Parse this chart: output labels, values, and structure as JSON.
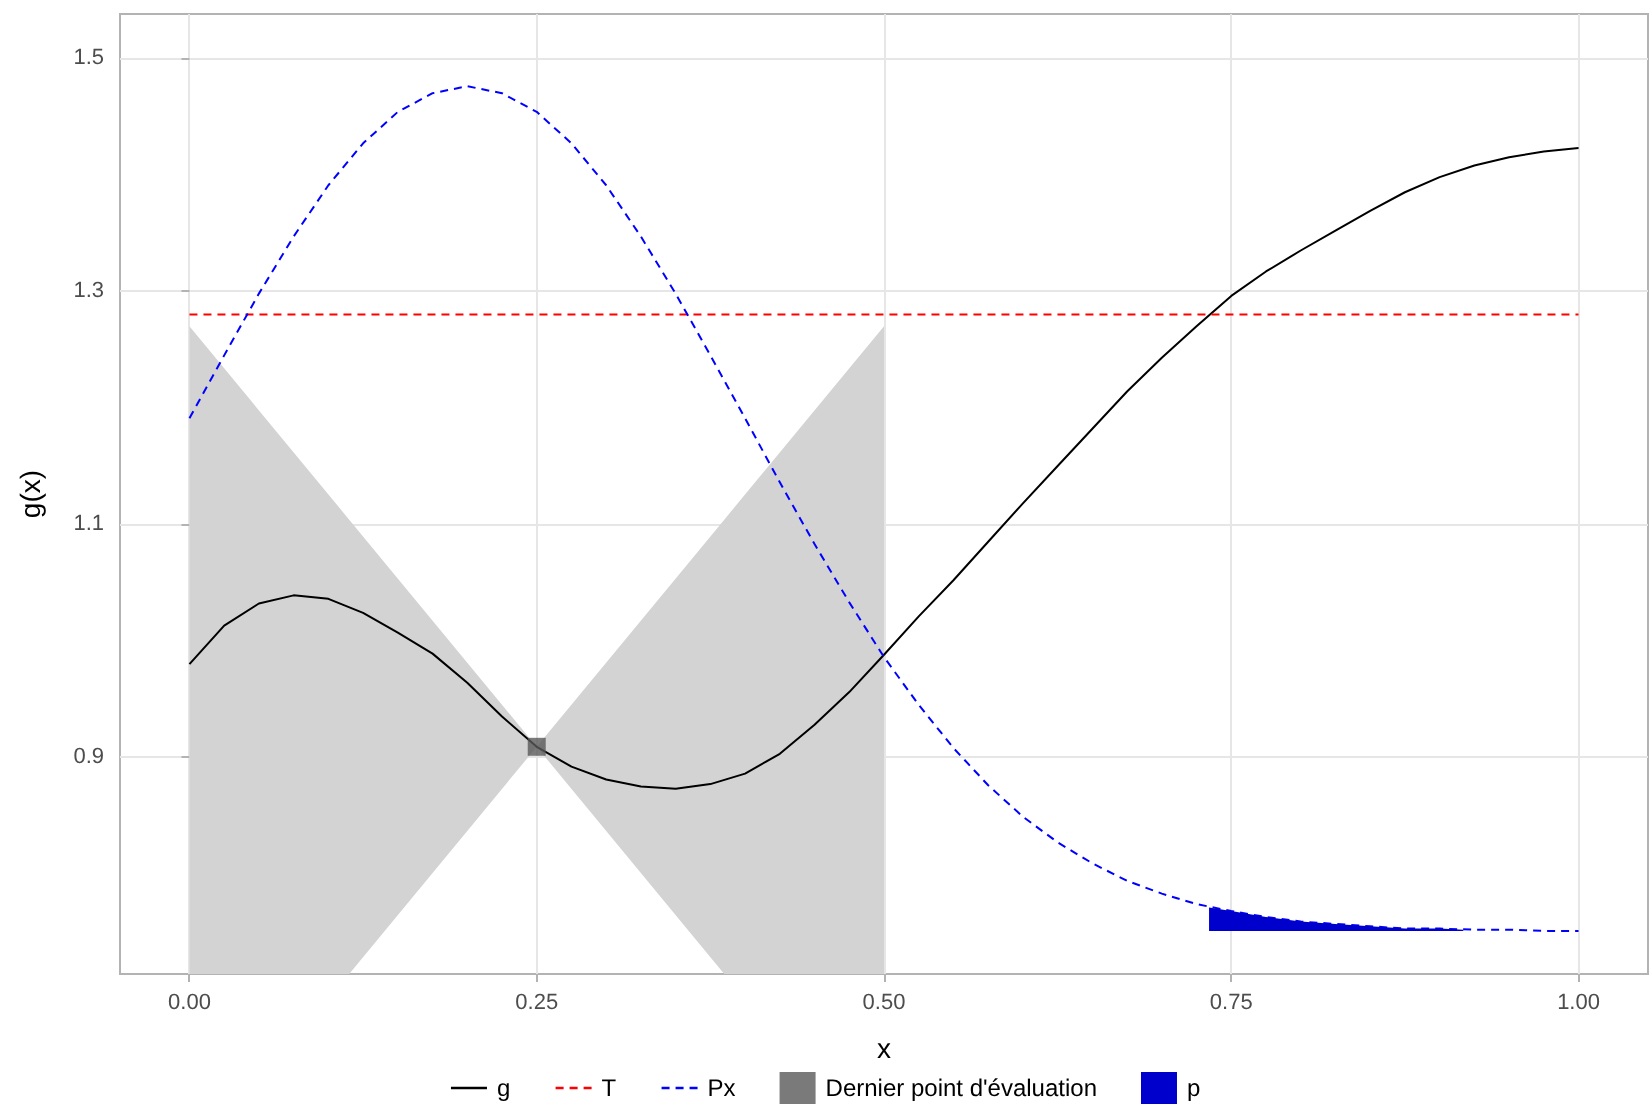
{
  "chart_data": {
    "type": "line",
    "xlabel": "x",
    "ylabel": "g(x)",
    "xlim": [
      -0.05,
      1.05
    ],
    "ylim": [
      0.714,
      1.538
    ],
    "xticks": [
      {
        "value": 0,
        "label": "0.00"
      },
      {
        "value": 0.25,
        "label": "0.25"
      },
      {
        "value": 0.5,
        "label": "0.50"
      },
      {
        "value": 0.75,
        "label": "0.75"
      },
      {
        "value": 1,
        "label": "1.00"
      }
    ],
    "yticks": [
      0.9,
      1.1,
      1.3,
      1.5
    ],
    "grid": true,
    "legend": "bottom",
    "marker": "none",
    "series": [
      {
        "type": "area",
        "color": "#d3d3d3",
        "x": [
          0,
          0.115,
          0.25,
          0.385,
          0.5
        ],
        "values": [
          null,
          null,
          null,
          null,
          null
        ],
        "lower": [
          0.714,
          0.714,
          0.909,
          0.714,
          0.714
        ],
        "upper": [
          1.27,
          1.104,
          0.909,
          1.104,
          1.27
        ]
      },
      {
        "name": "g",
        "color": "#000000",
        "line_style": "solid",
        "x": [
          0,
          0.025,
          0.05,
          0.075,
          0.1,
          0.125,
          0.15,
          0.175,
          0.2,
          0.225,
          0.25,
          0.275,
          0.3,
          0.325,
          0.35,
          0.375,
          0.4,
          0.425,
          0.45,
          0.475,
          0.5,
          0.525,
          0.55,
          0.575,
          0.6,
          0.625,
          0.65,
          0.675,
          0.7,
          0.725,
          0.75,
          0.775,
          0.8,
          0.825,
          0.85,
          0.875,
          0.9,
          0.925,
          0.95,
          0.975,
          1
        ],
        "values": [
          0.98,
          1.013,
          1.032,
          1.039,
          1.036,
          1.024,
          1.007,
          0.989,
          0.964,
          0.935,
          0.909,
          0.892,
          0.881,
          0.875,
          0.873,
          0.877,
          0.886,
          0.903,
          0.928,
          0.956,
          0.988,
          1.021,
          1.052,
          1.085,
          1.118,
          1.15,
          1.182,
          1.214,
          1.243,
          1.27,
          1.296,
          1.317,
          1.335,
          1.352,
          1.369,
          1.385,
          1.398,
          1.408,
          1.415,
          1.42,
          1.423
        ]
      },
      {
        "name": "T",
        "color": "#ff0000",
        "line_style": "dashed",
        "x": [
          0,
          1
        ],
        "values": [
          1.28,
          1.28
        ]
      },
      {
        "name": "Px",
        "color": "#0000ff",
        "line_style": "dashed",
        "x": [
          0,
          0.025,
          0.05,
          0.075,
          0.1,
          0.125,
          0.15,
          0.175,
          0.2,
          0.225,
          0.25,
          0.275,
          0.3,
          0.325,
          0.35,
          0.375,
          0.4,
          0.425,
          0.45,
          0.475,
          0.5,
          0.525,
          0.55,
          0.575,
          0.6,
          0.625,
          0.65,
          0.675,
          0.7,
          0.725,
          0.75,
          0.775,
          0.8,
          0.825,
          0.85,
          0.875,
          0.9,
          0.925,
          0.95,
          0.975,
          1
        ],
        "values": [
          1.191,
          1.245,
          1.298,
          1.347,
          1.391,
          1.427,
          1.454,
          1.47,
          1.476,
          1.47,
          1.454,
          1.427,
          1.391,
          1.347,
          1.298,
          1.245,
          1.191,
          1.136,
          1.083,
          1.033,
          0.986,
          0.945,
          0.908,
          0.876,
          0.849,
          0.827,
          0.809,
          0.794,
          0.783,
          0.774,
          0.768,
          0.763,
          0.759,
          0.757,
          0.755,
          0.753,
          0.753,
          0.752,
          0.752,
          0.751,
          0.751
        ]
      },
      {
        "name": "Dernier point d'évaluation",
        "type": "scatter",
        "marker": "square",
        "color": "#595959",
        "x": [
          0.25
        ],
        "values": [
          0.909
        ]
      },
      {
        "name": "p",
        "type": "area",
        "color": "#0000cd",
        "x": [
          0.734,
          0.75,
          0.775,
          0.8,
          0.825,
          0.85,
          0.875,
          0.9,
          0.917
        ],
        "values": [
          null,
          null,
          null,
          null,
          null,
          null,
          null,
          null,
          null
        ],
        "lower": [
          0.751,
          0.751,
          0.751,
          0.751,
          0.751,
          0.751,
          0.751,
          0.751,
          0.751
        ],
        "upper": [
          0.771,
          0.768,
          0.763,
          0.759,
          0.757,
          0.755,
          0.753,
          0.753,
          0.752
        ]
      }
    ]
  }
}
